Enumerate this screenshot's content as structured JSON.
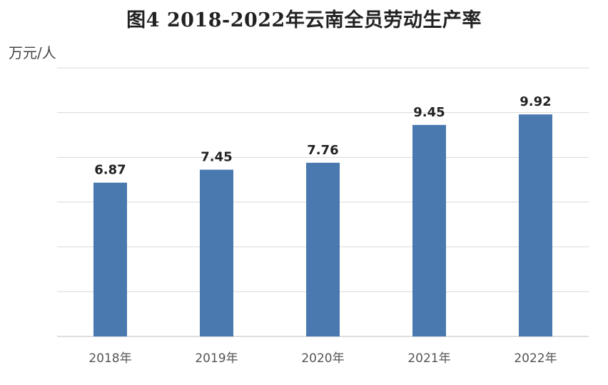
{
  "title": "图4 2018-2022年云南全员劳动生产率",
  "unit": "万元/人",
  "colors": {
    "bar": "#4a79b0",
    "grid": "#d9d9d9",
    "axis": "#bfbfbf"
  },
  "chart_data": {
    "type": "bar",
    "title": "图4 2018-2022年云南全员劳动生产率",
    "ylabel": "万元/人",
    "xlabel": "",
    "categories": [
      "2018年",
      "2019年",
      "2020年",
      "2021年",
      "2022年"
    ],
    "values": [
      6.87,
      7.45,
      7.76,
      9.45,
      9.92
    ],
    "data_labels": [
      "6.87",
      "7.45",
      "7.76",
      "9.45",
      "9.92"
    ],
    "ylim": [
      0,
      12
    ],
    "grid": true,
    "legend": "none"
  }
}
